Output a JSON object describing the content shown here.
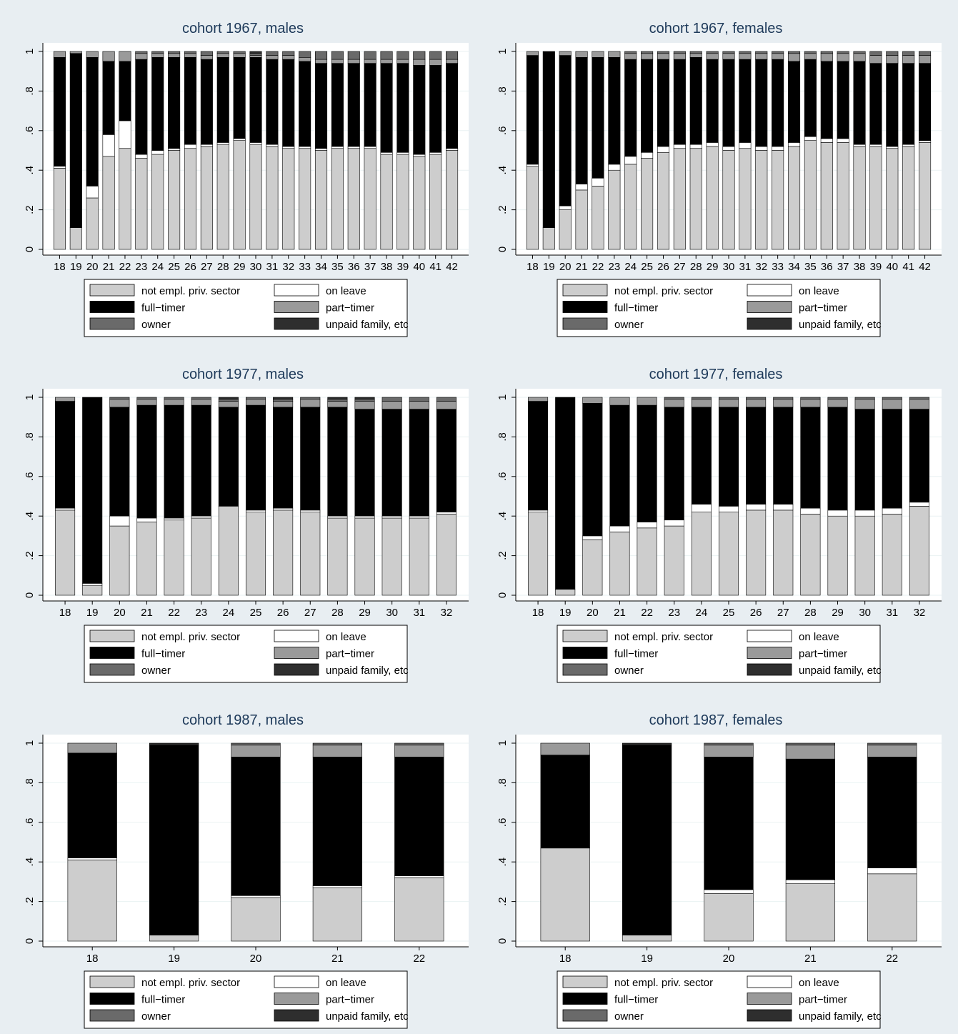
{
  "colors": {
    "background": "#e8eef2",
    "plot_bg": "#ffffff",
    "gridline": "#eaf2f3",
    "title": "#1e3a5a",
    "not_empl": "#cdcdcd",
    "on_leave": "#ffffff",
    "full_timer": "#000000",
    "part_timer": "#9a9a9a",
    "owner": "#6a6a6a",
    "unpaid": "#2e2e2e"
  },
  "legend_items": [
    {
      "label": "not empl. priv. sector",
      "color": "#cdcdcd"
    },
    {
      "label": "on leave",
      "color": "#ffffff"
    },
    {
      "label": "full−timer",
      "color": "#000000"
    },
    {
      "label": "part−timer",
      "color": "#9a9a9a"
    },
    {
      "label": "owner",
      "color": "#6a6a6a"
    },
    {
      "label": "unpaid family, etc",
      "color": "#2e2e2e"
    }
  ],
  "chart_data": [
    {
      "type": "bar",
      "stacked": true,
      "title": "cohort 1967, males",
      "ylim": [
        0,
        1
      ],
      "yticks": [
        "0",
        ".2",
        ".4",
        ".6",
        ".8",
        "1"
      ],
      "categories": [
        "18",
        "19",
        "20",
        "21",
        "22",
        "23",
        "24",
        "25",
        "26",
        "27",
        "28",
        "29",
        "30",
        "31",
        "32",
        "33",
        "34",
        "35",
        "36",
        "37",
        "38",
        "39",
        "40",
        "41",
        "42"
      ],
      "series": [
        {
          "name": "not empl. priv. sector",
          "values": [
            0.41,
            0.11,
            0.26,
            0.47,
            0.51,
            0.46,
            0.48,
            0.5,
            0.51,
            0.52,
            0.53,
            0.55,
            0.53,
            0.52,
            0.51,
            0.51,
            0.5,
            0.51,
            0.51,
            0.51,
            0.48,
            0.48,
            0.47,
            0.48,
            0.5
          ]
        },
        {
          "name": "on leave",
          "values": [
            0.01,
            0.0,
            0.06,
            0.11,
            0.14,
            0.02,
            0.02,
            0.01,
            0.02,
            0.01,
            0.01,
            0.01,
            0.01,
            0.01,
            0.01,
            0.01,
            0.01,
            0.01,
            0.01,
            0.01,
            0.01,
            0.01,
            0.01,
            0.01,
            0.01
          ]
        },
        {
          "name": "full−timer",
          "values": [
            0.55,
            0.88,
            0.65,
            0.37,
            0.3,
            0.48,
            0.47,
            0.46,
            0.44,
            0.43,
            0.43,
            0.41,
            0.43,
            0.43,
            0.44,
            0.43,
            0.43,
            0.42,
            0.42,
            0.42,
            0.45,
            0.45,
            0.45,
            0.44,
            0.43
          ]
        },
        {
          "name": "part−timer",
          "values": [
            0.03,
            0.01,
            0.03,
            0.05,
            0.05,
            0.03,
            0.02,
            0.02,
            0.02,
            0.02,
            0.02,
            0.02,
            0.01,
            0.02,
            0.02,
            0.02,
            0.02,
            0.02,
            0.02,
            0.02,
            0.02,
            0.02,
            0.03,
            0.03,
            0.02
          ]
        },
        {
          "name": "owner",
          "values": [
            0.0,
            0.0,
            0.0,
            0.0,
            0.0,
            0.01,
            0.01,
            0.01,
            0.01,
            0.02,
            0.01,
            0.01,
            0.01,
            0.02,
            0.02,
            0.03,
            0.04,
            0.04,
            0.04,
            0.04,
            0.04,
            0.04,
            0.04,
            0.04,
            0.04
          ]
        },
        {
          "name": "unpaid family, etc",
          "values": [
            0.0,
            0.0,
            0.0,
            0.0,
            0.0,
            0.0,
            0.0,
            0.0,
            0.0,
            0.0,
            0.0,
            0.0,
            0.01,
            0.0,
            0.0,
            0.0,
            0.0,
            0.0,
            0.0,
            0.0,
            0.0,
            0.0,
            0.0,
            0.0,
            0.0
          ]
        }
      ]
    },
    {
      "type": "bar",
      "stacked": true,
      "title": "cohort 1967, females",
      "ylim": [
        0,
        1
      ],
      "yticks": [
        "0",
        ".2",
        ".4",
        ".6",
        ".8",
        "1"
      ],
      "categories": [
        "18",
        "19",
        "20",
        "21",
        "22",
        "23",
        "24",
        "25",
        "26",
        "27",
        "28",
        "29",
        "30",
        "31",
        "32",
        "33",
        "34",
        "35",
        "36",
        "37",
        "38",
        "39",
        "40",
        "41",
        "42"
      ],
      "series": [
        {
          "name": "not empl. priv. sector",
          "values": [
            0.42,
            0.11,
            0.2,
            0.3,
            0.32,
            0.4,
            0.43,
            0.46,
            0.49,
            0.51,
            0.51,
            0.52,
            0.5,
            0.51,
            0.5,
            0.5,
            0.52,
            0.55,
            0.54,
            0.54,
            0.52,
            0.52,
            0.51,
            0.52,
            0.54
          ]
        },
        {
          "name": "on leave",
          "values": [
            0.01,
            0.0,
            0.02,
            0.03,
            0.04,
            0.03,
            0.04,
            0.03,
            0.03,
            0.02,
            0.02,
            0.02,
            0.02,
            0.03,
            0.02,
            0.02,
            0.02,
            0.02,
            0.02,
            0.02,
            0.01,
            0.01,
            0.01,
            0.01,
            0.01
          ]
        },
        {
          "name": "full−timer",
          "values": [
            0.55,
            0.89,
            0.76,
            0.64,
            0.61,
            0.54,
            0.49,
            0.47,
            0.44,
            0.43,
            0.44,
            0.42,
            0.44,
            0.42,
            0.44,
            0.44,
            0.41,
            0.39,
            0.39,
            0.39,
            0.42,
            0.41,
            0.42,
            0.41,
            0.39
          ]
        },
        {
          "name": "part−timer",
          "values": [
            0.02,
            0.0,
            0.02,
            0.03,
            0.03,
            0.03,
            0.03,
            0.03,
            0.03,
            0.03,
            0.02,
            0.03,
            0.03,
            0.03,
            0.03,
            0.03,
            0.04,
            0.03,
            0.04,
            0.04,
            0.04,
            0.04,
            0.04,
            0.04,
            0.04
          ]
        },
        {
          "name": "owner",
          "values": [
            0.0,
            0.0,
            0.0,
            0.0,
            0.0,
            0.0,
            0.01,
            0.01,
            0.01,
            0.01,
            0.01,
            0.01,
            0.01,
            0.01,
            0.01,
            0.01,
            0.01,
            0.01,
            0.01,
            0.01,
            0.01,
            0.02,
            0.02,
            0.02,
            0.02
          ]
        },
        {
          "name": "unpaid family, etc",
          "values": [
            0.0,
            0.0,
            0.0,
            0.0,
            0.0,
            0.0,
            0.0,
            0.0,
            0.0,
            0.0,
            0.0,
            0.0,
            0.0,
            0.0,
            0.0,
            0.0,
            0.0,
            0.0,
            0.0,
            0.0,
            0.0,
            0.0,
            0.0,
            0.0,
            0.0
          ]
        }
      ]
    },
    {
      "type": "bar",
      "stacked": true,
      "title": "cohort 1977, males",
      "ylim": [
        0,
        1
      ],
      "yticks": [
        "0",
        ".2",
        ".4",
        ".6",
        ".8",
        "1"
      ],
      "categories": [
        "18",
        "19",
        "20",
        "21",
        "22",
        "23",
        "24",
        "25",
        "26",
        "27",
        "28",
        "29",
        "30",
        "31",
        "32"
      ],
      "series": [
        {
          "name": "not empl. priv. sector",
          "values": [
            0.43,
            0.05,
            0.35,
            0.37,
            0.38,
            0.39,
            0.45,
            0.42,
            0.43,
            0.42,
            0.39,
            0.39,
            0.39,
            0.39,
            0.41
          ]
        },
        {
          "name": "on leave",
          "values": [
            0.01,
            0.01,
            0.05,
            0.02,
            0.01,
            0.01,
            0.0,
            0.01,
            0.01,
            0.01,
            0.01,
            0.01,
            0.01,
            0.01,
            0.01
          ]
        },
        {
          "name": "full−timer",
          "values": [
            0.54,
            0.94,
            0.55,
            0.57,
            0.57,
            0.56,
            0.5,
            0.53,
            0.51,
            0.52,
            0.55,
            0.54,
            0.54,
            0.54,
            0.52
          ]
        },
        {
          "name": "part−timer",
          "values": [
            0.02,
            0.0,
            0.04,
            0.03,
            0.03,
            0.03,
            0.03,
            0.03,
            0.03,
            0.04,
            0.03,
            0.04,
            0.04,
            0.04,
            0.04
          ]
        },
        {
          "name": "owner",
          "values": [
            0.0,
            0.0,
            0.01,
            0.01,
            0.01,
            0.01,
            0.01,
            0.01,
            0.01,
            0.01,
            0.01,
            0.01,
            0.02,
            0.02,
            0.02
          ]
        },
        {
          "name": "unpaid family, etc",
          "values": [
            0.0,
            0.0,
            0.0,
            0.0,
            0.0,
            0.0,
            0.01,
            0.0,
            0.01,
            0.0,
            0.01,
            0.01,
            0.0,
            0.0,
            0.0
          ]
        }
      ]
    },
    {
      "type": "bar",
      "stacked": true,
      "title": "cohort 1977, females",
      "ylim": [
        0,
        1
      ],
      "yticks": [
        "0",
        ".2",
        ".4",
        ".6",
        ".8",
        "1"
      ],
      "categories": [
        "18",
        "19",
        "20",
        "21",
        "22",
        "23",
        "24",
        "25",
        "26",
        "27",
        "28",
        "29",
        "30",
        "31",
        "32"
      ],
      "series": [
        {
          "name": "not empl. priv. sector",
          "values": [
            0.42,
            0.03,
            0.28,
            0.32,
            0.34,
            0.35,
            0.42,
            0.42,
            0.43,
            0.43,
            0.41,
            0.4,
            0.4,
            0.41,
            0.45
          ]
        },
        {
          "name": "on leave",
          "values": [
            0.01,
            0.0,
            0.02,
            0.03,
            0.03,
            0.03,
            0.04,
            0.03,
            0.03,
            0.03,
            0.03,
            0.03,
            0.03,
            0.03,
            0.02
          ]
        },
        {
          "name": "full−timer",
          "values": [
            0.55,
            0.97,
            0.67,
            0.61,
            0.59,
            0.57,
            0.49,
            0.5,
            0.49,
            0.49,
            0.51,
            0.52,
            0.51,
            0.5,
            0.47
          ]
        },
        {
          "name": "part−timer",
          "values": [
            0.02,
            0.0,
            0.03,
            0.04,
            0.04,
            0.04,
            0.04,
            0.04,
            0.04,
            0.04,
            0.04,
            0.04,
            0.05,
            0.05,
            0.05
          ]
        },
        {
          "name": "owner",
          "values": [
            0.0,
            0.0,
            0.0,
            0.0,
            0.0,
            0.01,
            0.01,
            0.01,
            0.01,
            0.01,
            0.01,
            0.01,
            0.01,
            0.01,
            0.01
          ]
        },
        {
          "name": "unpaid family, etc",
          "values": [
            0.0,
            0.0,
            0.0,
            0.0,
            0.0,
            0.0,
            0.0,
            0.0,
            0.0,
            0.0,
            0.0,
            0.0,
            0.0,
            0.0,
            0.0
          ]
        }
      ]
    },
    {
      "type": "bar",
      "stacked": true,
      "title": "cohort 1987, males",
      "ylim": [
        0,
        1
      ],
      "yticks": [
        "0",
        ".2",
        ".4",
        ".6",
        ".8",
        "1"
      ],
      "categories": [
        "18",
        "19",
        "20",
        "21",
        "22"
      ],
      "series": [
        {
          "name": "not empl. priv. sector",
          "values": [
            0.41,
            0.03,
            0.22,
            0.27,
            0.32
          ]
        },
        {
          "name": "on leave",
          "values": [
            0.01,
            0.0,
            0.01,
            0.01,
            0.01
          ]
        },
        {
          "name": "full−timer",
          "values": [
            0.53,
            0.96,
            0.7,
            0.65,
            0.6
          ]
        },
        {
          "name": "part−timer",
          "values": [
            0.05,
            0.0,
            0.06,
            0.06,
            0.06
          ]
        },
        {
          "name": "owner",
          "values": [
            0.0,
            0.0,
            0.01,
            0.01,
            0.01
          ]
        },
        {
          "name": "unpaid family, etc",
          "values": [
            0.0,
            0.01,
            0.0,
            0.0,
            0.0
          ]
        }
      ]
    },
    {
      "type": "bar",
      "stacked": true,
      "title": "cohort 1987, females",
      "ylim": [
        0,
        1
      ],
      "yticks": [
        "0",
        ".2",
        ".4",
        ".6",
        ".8",
        "1"
      ],
      "categories": [
        "18",
        "19",
        "20",
        "21",
        "22"
      ],
      "series": [
        {
          "name": "not empl. priv. sector",
          "values": [
            0.47,
            0.03,
            0.24,
            0.29,
            0.34
          ]
        },
        {
          "name": "on leave",
          "values": [
            0.0,
            0.0,
            0.02,
            0.02,
            0.03
          ]
        },
        {
          "name": "full−timer",
          "values": [
            0.47,
            0.96,
            0.67,
            0.61,
            0.56
          ]
        },
        {
          "name": "part−timer",
          "values": [
            0.06,
            0.0,
            0.06,
            0.07,
            0.06
          ]
        },
        {
          "name": "owner",
          "values": [
            0.0,
            0.0,
            0.01,
            0.01,
            0.01
          ]
        },
        {
          "name": "unpaid family, etc",
          "values": [
            0.0,
            0.01,
            0.0,
            0.0,
            0.0
          ]
        }
      ]
    }
  ]
}
